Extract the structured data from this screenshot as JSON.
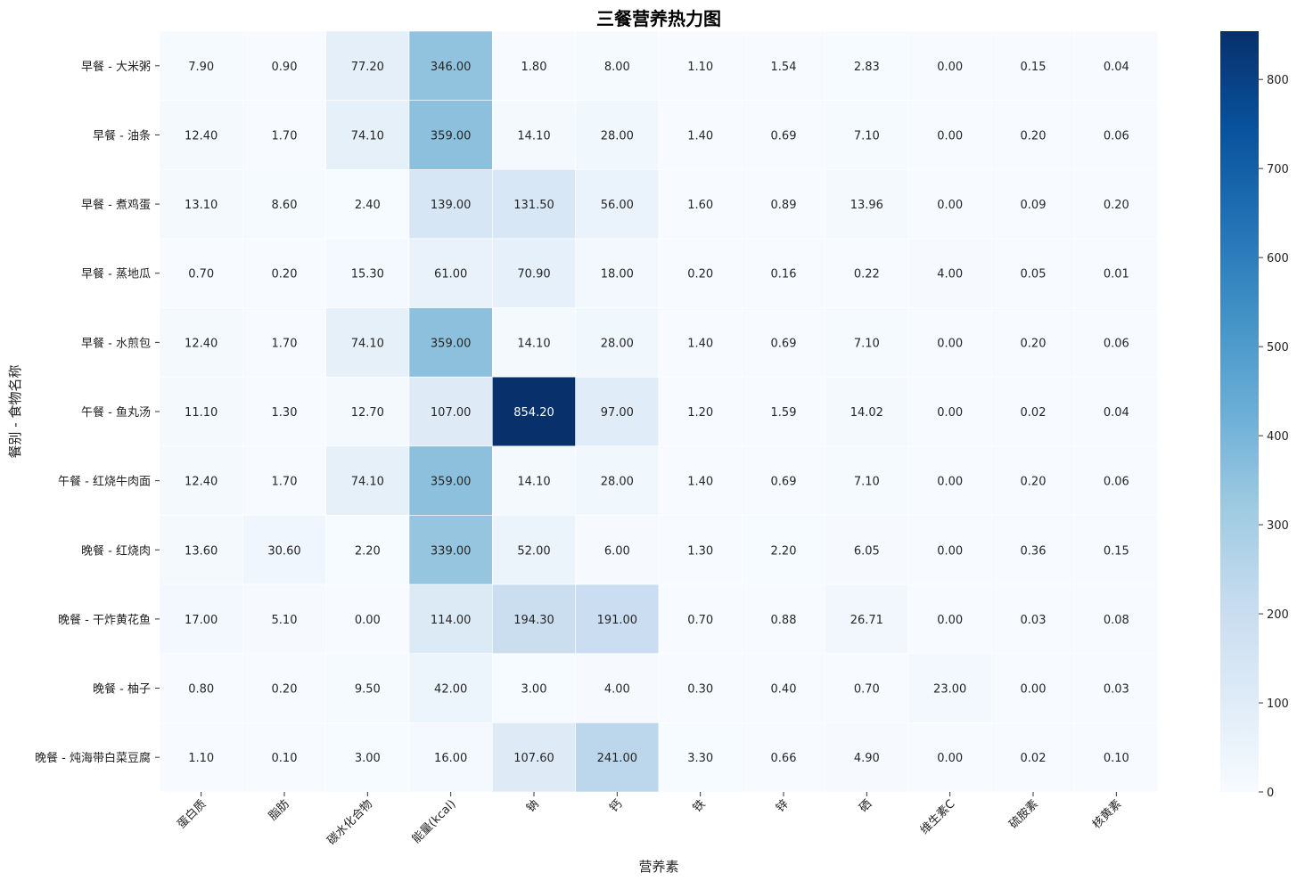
{
  "chart_data": {
    "type": "heatmap",
    "title": "三餐营养热力图",
    "xlabel": "营养素",
    "ylabel": "餐别 - 食物名称",
    "columns": [
      "蛋白质",
      "脂肪",
      "碳水化合物",
      "能量(kcal)",
      "钠",
      "钙",
      "铁",
      "锌",
      "硒",
      "维生素C",
      "硫胺素",
      "核黄素"
    ],
    "rows": [
      "早餐 - 大米粥",
      "早餐 - 油条",
      "早餐 - 煮鸡蛋",
      "早餐 - 蒸地瓜",
      "早餐 - 水煎包",
      "午餐 - 鱼丸汤",
      "午餐 - 红烧牛肉面",
      "晚餐 - 红烧肉",
      "晚餐 - 干炸黄花鱼",
      "晚餐 - 柚子",
      "晚餐 - 炖海带白菜豆腐"
    ],
    "values": [
      [
        7.9,
        0.9,
        77.2,
        346.0,
        1.8,
        8.0,
        1.1,
        1.54,
        2.83,
        0.0,
        0.15,
        0.04
      ],
      [
        12.4,
        1.7,
        74.1,
        359.0,
        14.1,
        28.0,
        1.4,
        0.69,
        7.1,
        0.0,
        0.2,
        0.06
      ],
      [
        13.1,
        8.6,
        2.4,
        139.0,
        131.5,
        56.0,
        1.6,
        0.89,
        13.96,
        0.0,
        0.09,
        0.2
      ],
      [
        0.7,
        0.2,
        15.3,
        61.0,
        70.9,
        18.0,
        0.2,
        0.16,
        0.22,
        4.0,
        0.05,
        0.01
      ],
      [
        12.4,
        1.7,
        74.1,
        359.0,
        14.1,
        28.0,
        1.4,
        0.69,
        7.1,
        0.0,
        0.2,
        0.06
      ],
      [
        11.1,
        1.3,
        12.7,
        107.0,
        854.2,
        97.0,
        1.2,
        1.59,
        14.02,
        0.0,
        0.02,
        0.04
      ],
      [
        12.4,
        1.7,
        74.1,
        359.0,
        14.1,
        28.0,
        1.4,
        0.69,
        7.1,
        0.0,
        0.2,
        0.06
      ],
      [
        13.6,
        30.6,
        2.2,
        339.0,
        52.0,
        6.0,
        1.3,
        2.2,
        6.05,
        0.0,
        0.36,
        0.15
      ],
      [
        17.0,
        5.1,
        0.0,
        114.0,
        194.3,
        191.0,
        0.7,
        0.88,
        26.71,
        0.0,
        0.03,
        0.08
      ],
      [
        0.8,
        0.2,
        9.5,
        42.0,
        3.0,
        4.0,
        0.3,
        0.4,
        0.7,
        23.0,
        0.0,
        0.03
      ],
      [
        1.1,
        0.1,
        3.0,
        16.0,
        107.6,
        241.0,
        3.3,
        0.66,
        4.9,
        0.0,
        0.02,
        0.1
      ]
    ],
    "value_format": "0.00",
    "colormap": "Blues",
    "color_range": [
      0,
      854.2
    ],
    "colorbar_ticks": [
      "0",
      "100",
      "200",
      "300",
      "400",
      "500",
      "600",
      "700",
      "800"
    ],
    "grid": false,
    "legend": "right colorbar"
  }
}
